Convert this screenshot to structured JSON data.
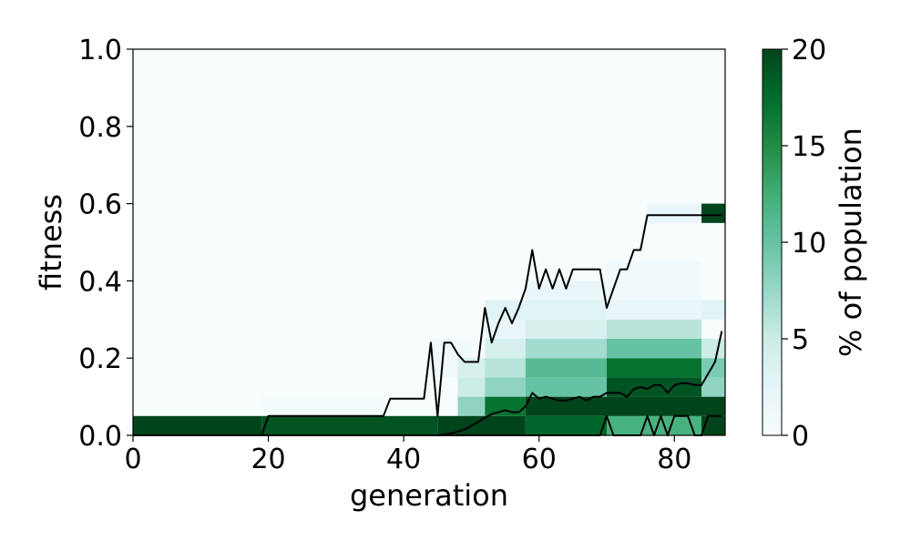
{
  "chart_data": {
    "type": "heatmap",
    "xlabel": "generation",
    "ylabel": "fitness",
    "xlim": [
      0,
      87.5
    ],
    "ylim": [
      0,
      1.0
    ],
    "x_ticks": [
      "0",
      "20",
      "40",
      "60",
      "80"
    ],
    "x_tick_values": [
      0,
      20,
      40,
      60,
      80
    ],
    "y_ticks": [
      "0.0",
      "0.2",
      "0.4",
      "0.6",
      "0.8",
      "1.0"
    ],
    "y_tick_values": [
      0.0,
      0.2,
      0.4,
      0.6,
      0.8,
      1.0
    ],
    "grid": false,
    "colormap": {
      "name": "BuGn",
      "low": "#f7fcfd",
      "mid": "#66c2a4",
      "high": "#00441b"
    },
    "colorbar": {
      "label": "% of population",
      "range": [
        0,
        20
      ],
      "ticks": [
        "0",
        "5",
        "10",
        "15",
        "20"
      ],
      "tick_values": [
        0,
        5,
        10,
        15,
        20
      ]
    },
    "bin_width_fitness": 0.05,
    "heatmap_cells": [
      {
        "x_range": [
          0,
          19
        ],
        "y_range": [
          0.0,
          0.05
        ],
        "value": 20
      },
      {
        "x_range": [
          19,
          38
        ],
        "y_range": [
          0.05,
          0.1
        ],
        "value": 0.5
      },
      {
        "x_range": [
          19,
          45
        ],
        "y_range": [
          0.0,
          0.05
        ],
        "value": 19
      },
      {
        "x_range": [
          44,
          50
        ],
        "y_range": [
          0.15,
          0.25
        ],
        "value": 1
      },
      {
        "x_range": [
          48,
          52
        ],
        "y_range": [
          0.05,
          0.1
        ],
        "value": 8
      },
      {
        "x_range": [
          48,
          52
        ],
        "y_range": [
          0.1,
          0.15
        ],
        "value": 5
      },
      {
        "x_range": [
          48,
          52
        ],
        "y_range": [
          0.15,
          0.2
        ],
        "value": 4
      },
      {
        "x_range": [
          45,
          58
        ],
        "y_range": [
          0.0,
          0.05
        ],
        "value": 20
      },
      {
        "x_range": [
          52,
          58
        ],
        "y_range": [
          0.05,
          0.1
        ],
        "value": 17
      },
      {
        "x_range": [
          52,
          58
        ],
        "y_range": [
          0.1,
          0.15
        ],
        "value": 8
      },
      {
        "x_range": [
          52,
          58
        ],
        "y_range": [
          0.15,
          0.2
        ],
        "value": 6
      },
      {
        "x_range": [
          52,
          58
        ],
        "y_range": [
          0.2,
          0.25
        ],
        "value": 4
      },
      {
        "x_range": [
          52,
          58
        ],
        "y_range": [
          0.25,
          0.3
        ],
        "value": 2
      },
      {
        "x_range": [
          52,
          58
        ],
        "y_range": [
          0.3,
          0.35
        ],
        "value": 3
      },
      {
        "x_range": [
          58,
          70
        ],
        "y_range": [
          0.0,
          0.05
        ],
        "value": 18
      },
      {
        "x_range": [
          58,
          70
        ],
        "y_range": [
          0.05,
          0.1
        ],
        "value": 20
      },
      {
        "x_range": [
          58,
          70
        ],
        "y_range": [
          0.1,
          0.15
        ],
        "value": 10
      },
      {
        "x_range": [
          58,
          70
        ],
        "y_range": [
          0.15,
          0.2
        ],
        "value": 11
      },
      {
        "x_range": [
          58,
          70
        ],
        "y_range": [
          0.2,
          0.25
        ],
        "value": 7
      },
      {
        "x_range": [
          58,
          70
        ],
        "y_range": [
          0.25,
          0.3
        ],
        "value": 4
      },
      {
        "x_range": [
          58,
          70
        ],
        "y_range": [
          0.3,
          0.35
        ],
        "value": 3
      },
      {
        "x_range": [
          58,
          70
        ],
        "y_range": [
          0.35,
          0.4
        ],
        "value": 2
      },
      {
        "x_range": [
          70,
          84
        ],
        "y_range": [
          0.0,
          0.05
        ],
        "value": 12
      },
      {
        "x_range": [
          70,
          84
        ],
        "y_range": [
          0.05,
          0.1
        ],
        "value": 20
      },
      {
        "x_range": [
          70,
          84
        ],
        "y_range": [
          0.1,
          0.15
        ],
        "value": 19
      },
      {
        "x_range": [
          70,
          84
        ],
        "y_range": [
          0.15,
          0.2
        ],
        "value": 17
      },
      {
        "x_range": [
          70,
          84
        ],
        "y_range": [
          0.2,
          0.25
        ],
        "value": 10
      },
      {
        "x_range": [
          70,
          84
        ],
        "y_range": [
          0.25,
          0.3
        ],
        "value": 6
      },
      {
        "x_range": [
          70,
          84
        ],
        "y_range": [
          0.3,
          0.35
        ],
        "value": 2
      },
      {
        "x_range": [
          70,
          84
        ],
        "y_range": [
          0.35,
          0.45
        ],
        "value": 1
      },
      {
        "x_range": [
          76,
          84
        ],
        "y_range": [
          0.55,
          0.6
        ],
        "value": 2
      },
      {
        "x_range": [
          84,
          87.5
        ],
        "y_range": [
          0.0,
          0.05
        ],
        "value": 20
      },
      {
        "x_range": [
          84,
          87.5
        ],
        "y_range": [
          0.05,
          0.1
        ],
        "value": 20
      },
      {
        "x_range": [
          84,
          87.5
        ],
        "y_range": [
          0.1,
          0.15
        ],
        "value": 8
      },
      {
        "x_range": [
          84,
          87.5
        ],
        "y_range": [
          0.15,
          0.2
        ],
        "value": 9
      },
      {
        "x_range": [
          84,
          87.5
        ],
        "y_range": [
          0.2,
          0.25
        ],
        "value": 5
      },
      {
        "x_range": [
          84,
          87.5
        ],
        "y_range": [
          0.3,
          0.35
        ],
        "value": 3
      },
      {
        "x_range": [
          84,
          87.5
        ],
        "y_range": [
          0.55,
          0.6
        ],
        "value": 20
      }
    ],
    "series": [
      {
        "x": [
          0,
          19,
          20,
          37,
          38,
          43,
          44,
          45,
          46,
          47,
          48,
          49,
          50,
          51,
          52,
          53,
          54,
          55,
          56,
          57,
          58,
          59,
          60,
          61,
          62,
          63,
          64,
          65,
          66,
          67,
          68,
          69,
          70,
          71,
          72,
          73,
          74,
          75,
          76,
          77,
          78,
          79,
          80,
          81,
          82,
          83,
          84,
          85,
          86,
          87
        ],
        "y": [
          0,
          0,
          0.05,
          0.05,
          0.095,
          0.095,
          0.24,
          0.05,
          0.24,
          0.24,
          0.21,
          0.19,
          0.19,
          0.19,
          0.33,
          0.24,
          0.29,
          0.33,
          0.29,
          0.33,
          0.38,
          0.48,
          0.38,
          0.43,
          0.38,
          0.43,
          0.38,
          0.43,
          0.43,
          0.43,
          0.43,
          0.43,
          0.33,
          0.38,
          0.43,
          0.43,
          0.48,
          0.48,
          0.57,
          0.57,
          0.57,
          0.57,
          0.57,
          0.57,
          0.57,
          0.57,
          0.57,
          0.57,
          0.57,
          0.57
        ]
      },
      {
        "x": [
          0,
          45,
          47,
          48,
          49,
          50,
          51,
          52,
          53,
          54,
          55,
          56,
          57,
          58,
          59,
          60,
          61,
          62,
          63,
          64,
          65,
          66,
          67,
          68,
          69,
          70,
          71,
          72,
          73,
          74,
          75,
          76,
          77,
          78,
          79,
          80,
          81,
          82,
          83,
          84,
          85,
          86,
          87
        ],
        "y": [
          0,
          0,
          0.005,
          0.01,
          0.015,
          0.025,
          0.035,
          0.045,
          0.055,
          0.06,
          0.065,
          0.06,
          0.06,
          0.075,
          0.11,
          0.095,
          0.1,
          0.095,
          0.09,
          0.09,
          0.095,
          0.1,
          0.09,
          0.1,
          0.1,
          0.11,
          0.11,
          0.11,
          0.1,
          0.12,
          0.125,
          0.12,
          0.13,
          0.13,
          0.11,
          0.13,
          0.135,
          0.135,
          0.13,
          0.13,
          0.16,
          0.19,
          0.27
        ]
      },
      {
        "x": [
          0,
          69,
          70,
          71,
          72,
          73,
          74,
          75,
          76,
          77,
          78,
          79,
          80,
          81,
          82,
          83,
          84,
          85,
          86,
          87
        ],
        "y": [
          0,
          0,
          0.05,
          0,
          0,
          0,
          0,
          0,
          0.05,
          0,
          0.05,
          0,
          0.05,
          0.05,
          0.05,
          0,
          0,
          0.05,
          0.05,
          0.05
        ]
      }
    ]
  }
}
